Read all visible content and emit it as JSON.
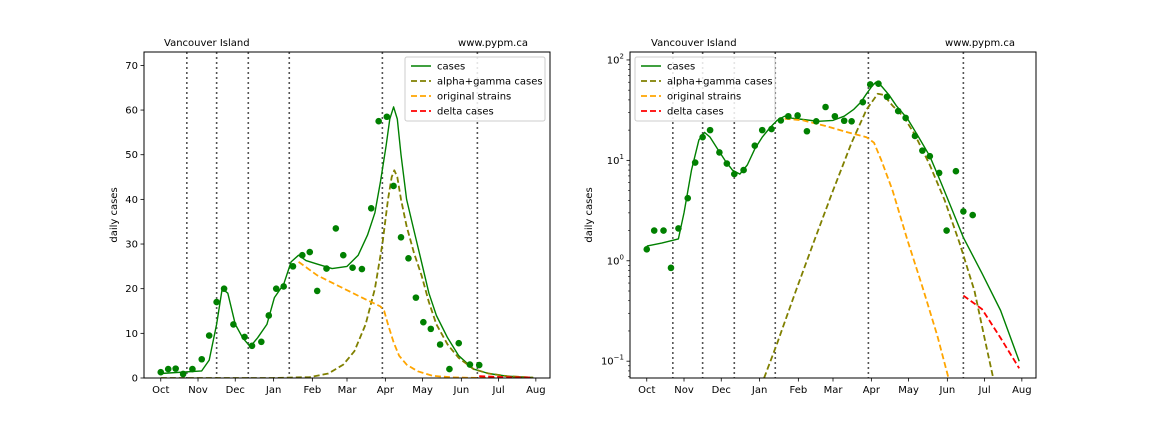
{
  "chart_data": [
    {
      "type": "line",
      "title_left": "Vancouver Island",
      "title_right": "www.pypm.ca",
      "ylabel": "daily cases",
      "yscale": "linear",
      "ylim": [
        0,
        73
      ],
      "yticks": [
        0,
        10,
        20,
        30,
        40,
        50,
        60,
        70
      ],
      "xlim": [
        -0.45,
        10.45
      ],
      "xticks": [
        {
          "x": 0,
          "label": "Oct"
        },
        {
          "x": 1.0,
          "label": "Nov"
        },
        {
          "x": 2.0,
          "label": "Dec"
        },
        {
          "x": 3.03,
          "label": "Jan"
        },
        {
          "x": 4.07,
          "label": "Feb"
        },
        {
          "x": 5.0,
          "label": "Mar"
        },
        {
          "x": 6.03,
          "label": "Apr"
        },
        {
          "x": 7.03,
          "label": "May"
        },
        {
          "x": 8.07,
          "label": "Jun"
        },
        {
          "x": 9.07,
          "label": "Jul"
        },
        {
          "x": 10.07,
          "label": "Aug"
        }
      ],
      "vlines": [
        0.7,
        1.5,
        2.35,
        3.45,
        5.95,
        8.5
      ],
      "legend": "top-right",
      "series": [
        {
          "name": "cases",
          "style": "solid",
          "color": "#008000",
          "points": [
            [
              0,
              1
            ],
            [
              1.1,
              1.6
            ],
            [
              1.3,
              4
            ],
            [
              1.5,
              12
            ],
            [
              1.65,
              20
            ],
            [
              1.8,
              19
            ],
            [
              2.0,
              12
            ],
            [
              2.2,
              9
            ],
            [
              2.4,
              7
            ],
            [
              2.6,
              9
            ],
            [
              2.85,
              12
            ],
            [
              3.05,
              18
            ],
            [
              3.3,
              21
            ],
            [
              3.5,
              26
            ],
            [
              3.7,
              27.5
            ],
            [
              3.9,
              26.3
            ],
            [
              4.2,
              25.5
            ],
            [
              4.6,
              24.5
            ],
            [
              5.0,
              25
            ],
            [
              5.3,
              27.5
            ],
            [
              5.55,
              32
            ],
            [
              5.75,
              37
            ],
            [
              5.9,
              44
            ],
            [
              6.05,
              52
            ],
            [
              6.15,
              58
            ],
            [
              6.25,
              60.7
            ],
            [
              6.35,
              58
            ],
            [
              6.45,
              50
            ],
            [
              6.6,
              40
            ],
            [
              6.8,
              33
            ],
            [
              7.0,
              26
            ],
            [
              7.2,
              19
            ],
            [
              7.4,
              14
            ],
            [
              7.7,
              9
            ],
            [
              8.0,
              5
            ],
            [
              8.4,
              2
            ],
            [
              8.8,
              1
            ],
            [
              9.3,
              0.4
            ],
            [
              10.0,
              0.1
            ]
          ]
        },
        {
          "name": "alpha+gamma cases",
          "style": "dashed",
          "color": "#808000",
          "points": [
            [
              0,
              0
            ],
            [
              3,
              0
            ],
            [
              4,
              0.2
            ],
            [
              4.5,
              1
            ],
            [
              4.9,
              3
            ],
            [
              5.2,
              6
            ],
            [
              5.5,
              12
            ],
            [
              5.75,
              20
            ],
            [
              5.95,
              30
            ],
            [
              6.1,
              40
            ],
            [
              6.2,
              45
            ],
            [
              6.27,
              46.5
            ],
            [
              6.35,
              45
            ],
            [
              6.45,
              40
            ],
            [
              6.6,
              34
            ],
            [
              6.8,
              28
            ],
            [
              7.0,
              23
            ],
            [
              7.2,
              17
            ],
            [
              7.4,
              12
            ],
            [
              7.7,
              7.5
            ],
            [
              8.0,
              4.5
            ],
            [
              8.4,
              2
            ],
            [
              8.8,
              1
            ],
            [
              9.3,
              0.4
            ],
            [
              10.0,
              0.1
            ]
          ]
        },
        {
          "name": "original strains",
          "style": "dashed",
          "color": "#FFA500",
          "points": [
            [
              3.7,
              26
            ],
            [
              4.2,
              23
            ],
            [
              4.8,
              20.5
            ],
            [
              5.4,
              18
            ],
            [
              5.9,
              16
            ],
            [
              6.0,
              15
            ],
            [
              6.1,
              12
            ],
            [
              6.25,
              8
            ],
            [
              6.4,
              5
            ],
            [
              6.6,
              3
            ],
            [
              6.9,
              1.5
            ],
            [
              7.3,
              0.5
            ],
            [
              7.8,
              0.15
            ],
            [
              8.3,
              0.05
            ],
            [
              9.0,
              0
            ]
          ]
        },
        {
          "name": "delta cases",
          "style": "dashed",
          "color": "#FF0000",
          "points": [
            [
              8.55,
              0.4
            ],
            [
              9.0,
              0.25
            ],
            [
              9.5,
              0.15
            ],
            [
              10.0,
              0.08
            ]
          ]
        }
      ],
      "scatter": {
        "name": "data",
        "color": "#008000",
        "points": [
          [
            0,
            1.3
          ],
          [
            0.2,
            2.0
          ],
          [
            0.4,
            2.1
          ],
          [
            0.6,
            0.9
          ],
          [
            0.85,
            2.0
          ],
          [
            1.1,
            4.2
          ],
          [
            1.3,
            9.5
          ],
          [
            1.5,
            17
          ],
          [
            1.7,
            20
          ],
          [
            1.95,
            12
          ],
          [
            2.25,
            9.2
          ],
          [
            2.45,
            7.2
          ],
          [
            2.7,
            8.1
          ],
          [
            2.9,
            14
          ],
          [
            3.1,
            20
          ],
          [
            3.3,
            20.5
          ],
          [
            3.55,
            25
          ],
          [
            3.8,
            27.5
          ],
          [
            4.0,
            28.2
          ],
          [
            4.2,
            19.5
          ],
          [
            4.45,
            24.5
          ],
          [
            4.7,
            33.5
          ],
          [
            4.9,
            27.5
          ],
          [
            5.15,
            24.7
          ],
          [
            5.4,
            24.4
          ],
          [
            5.65,
            38
          ],
          [
            5.85,
            57.5
          ],
          [
            6.07,
            58.5
          ],
          [
            6.25,
            43
          ],
          [
            6.45,
            31.5
          ],
          [
            6.65,
            26.8
          ],
          [
            6.85,
            18
          ],
          [
            7.05,
            12.5
          ],
          [
            7.25,
            11
          ],
          [
            7.5,
            7.5
          ],
          [
            7.75,
            2
          ],
          [
            8.0,
            7.8
          ],
          [
            8.3,
            3
          ],
          [
            8.55,
            2.9
          ]
        ]
      }
    },
    {
      "type": "line",
      "title_left": "Vancouver Island",
      "title_right": "www.pypm.ca",
      "ylabel": "daily cases",
      "yscale": "log",
      "ylim": [
        0.068,
        120
      ],
      "yticks": [
        {
          "v": 0.1,
          "base": "10",
          "exp": "−1"
        },
        {
          "v": 1,
          "base": "10",
          "exp": "0"
        },
        {
          "v": 10,
          "base": "10",
          "exp": "1"
        },
        {
          "v": 100,
          "base": "10",
          "exp": "2"
        }
      ],
      "xlim": [
        -0.45,
        10.45
      ],
      "xticks": [
        {
          "x": 0,
          "label": "Oct"
        },
        {
          "x": 1.0,
          "label": "Nov"
        },
        {
          "x": 2.0,
          "label": "Dec"
        },
        {
          "x": 3.03,
          "label": "Jan"
        },
        {
          "x": 4.07,
          "label": "Feb"
        },
        {
          "x": 5.0,
          "label": "Mar"
        },
        {
          "x": 6.03,
          "label": "Apr"
        },
        {
          "x": 7.03,
          "label": "May"
        },
        {
          "x": 8.07,
          "label": "Jun"
        },
        {
          "x": 9.07,
          "label": "Jul"
        },
        {
          "x": 10.07,
          "label": "Aug"
        }
      ],
      "vlines": [
        0.7,
        1.5,
        2.35,
        3.45,
        5.95,
        8.5
      ],
      "legend": "top-left",
      "series": [
        {
          "name": "cases",
          "style": "solid",
          "color": "#008000",
          "points": [
            [
              0,
              1.4
            ],
            [
              0.4,
              1.5
            ],
            [
              0.85,
              1.65
            ],
            [
              1.0,
              3
            ],
            [
              1.2,
              8
            ],
            [
              1.4,
              16
            ],
            [
              1.55,
              19
            ],
            [
              1.7,
              17
            ],
            [
              1.9,
              13
            ],
            [
              2.1,
              10
            ],
            [
              2.3,
              8
            ],
            [
              2.5,
              7.3
            ],
            [
              2.7,
              9
            ],
            [
              2.9,
              13
            ],
            [
              3.1,
              17
            ],
            [
              3.3,
              21
            ],
            [
              3.5,
              25
            ],
            [
              3.7,
              27.5
            ],
            [
              3.9,
              26.3
            ],
            [
              4.2,
              25.5
            ],
            [
              4.6,
              24.5
            ],
            [
              5.0,
              25
            ],
            [
              5.3,
              27.5
            ],
            [
              5.55,
              32
            ],
            [
              5.75,
              38
            ],
            [
              5.9,
              46
            ],
            [
              6.05,
              55
            ],
            [
              6.15,
              60
            ],
            [
              6.3,
              55
            ],
            [
              6.5,
              45
            ],
            [
              6.7,
              35
            ],
            [
              7.0,
              26
            ],
            [
              7.3,
              17
            ],
            [
              7.6,
              11
            ],
            [
              7.9,
              6
            ],
            [
              8.2,
              3.2
            ],
            [
              8.5,
              1.7
            ],
            [
              9.0,
              0.75
            ],
            [
              9.5,
              0.32
            ],
            [
              10.0,
              0.1
            ]
          ]
        },
        {
          "name": "alpha+gamma cases",
          "style": "dashed",
          "color": "#808000",
          "points": [
            [
              3.15,
              0.068
            ],
            [
              3.5,
              0.15
            ],
            [
              4.0,
              0.5
            ],
            [
              4.5,
              1.6
            ],
            [
              5.0,
              5
            ],
            [
              5.5,
              15
            ],
            [
              5.9,
              32
            ],
            [
              6.2,
              46
            ],
            [
              6.35,
              45
            ],
            [
              6.6,
              35
            ],
            [
              6.9,
              27
            ],
            [
              7.2,
              18
            ],
            [
              7.6,
              9
            ],
            [
              8.0,
              4
            ],
            [
              8.4,
              1.5
            ],
            [
              8.8,
              0.5
            ],
            [
              9.1,
              0.15
            ],
            [
              9.3,
              0.068
            ]
          ]
        },
        {
          "name": "original strains",
          "style": "dashed",
          "color": "#FFA500",
          "points": [
            [
              3.7,
              26
            ],
            [
              4.2,
              25
            ],
            [
              4.8,
              22
            ],
            [
              5.4,
              19
            ],
            [
              5.9,
              17
            ],
            [
              6.1,
              15
            ],
            [
              6.3,
              10
            ],
            [
              6.6,
              5
            ],
            [
              7.0,
              1.6
            ],
            [
              7.4,
              0.55
            ],
            [
              7.8,
              0.18
            ],
            [
              8.1,
              0.068
            ]
          ]
        },
        {
          "name": "delta cases",
          "style": "dashed",
          "color": "#FF0000",
          "points": [
            [
              8.5,
              0.45
            ],
            [
              9.0,
              0.33
            ],
            [
              9.5,
              0.17
            ],
            [
              10.0,
              0.085
            ]
          ]
        }
      ],
      "scatter": {
        "name": "data",
        "color": "#008000",
        "points": [
          [
            0,
            1.3
          ],
          [
            0.2,
            2.0
          ],
          [
            0.45,
            2.0
          ],
          [
            0.65,
            0.85
          ],
          [
            0.85,
            2.1
          ],
          [
            1.1,
            4.2
          ],
          [
            1.3,
            9.5
          ],
          [
            1.5,
            17
          ],
          [
            1.7,
            20
          ],
          [
            1.95,
            12
          ],
          [
            2.15,
            9.3
          ],
          [
            2.35,
            7.3
          ],
          [
            2.6,
            8
          ],
          [
            2.9,
            14
          ],
          [
            3.1,
            20
          ],
          [
            3.35,
            20.5
          ],
          [
            3.6,
            25
          ],
          [
            3.8,
            27.5
          ],
          [
            4.05,
            28
          ],
          [
            4.3,
            19.5
          ],
          [
            4.55,
            24.5
          ],
          [
            4.8,
            34
          ],
          [
            5.05,
            27.5
          ],
          [
            5.3,
            24.8
          ],
          [
            5.5,
            24.5
          ],
          [
            5.8,
            38
          ],
          [
            6.0,
            57
          ],
          [
            6.22,
            58
          ],
          [
            6.45,
            43
          ],
          [
            6.75,
            31
          ],
          [
            6.95,
            26.5
          ],
          [
            7.2,
            17.5
          ],
          [
            7.4,
            12.5
          ],
          [
            7.6,
            11
          ],
          [
            7.85,
            7.5
          ],
          [
            8.05,
            2
          ],
          [
            8.3,
            7.8
          ],
          [
            8.5,
            3.1
          ],
          [
            8.75,
            2.85
          ]
        ]
      }
    }
  ]
}
